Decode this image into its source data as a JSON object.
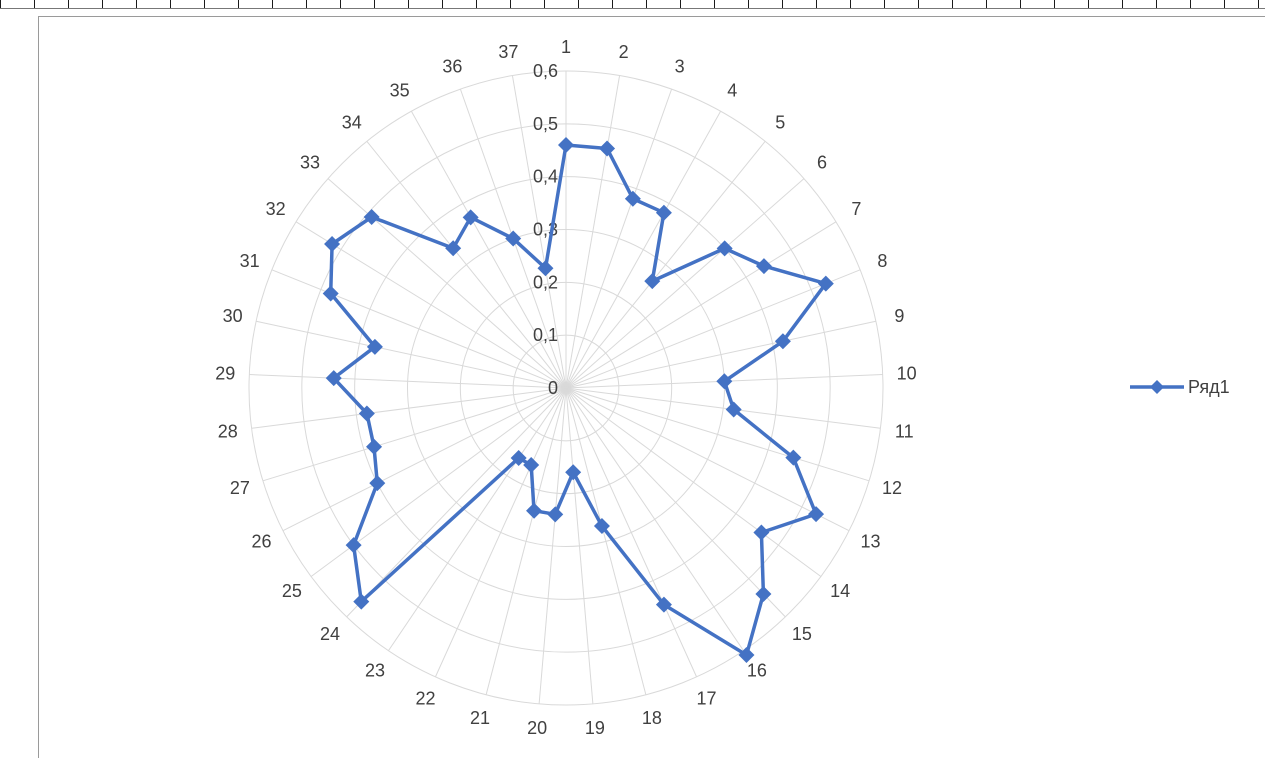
{
  "chart_data": {
    "type": "radar",
    "categories": [
      "1",
      "2",
      "3",
      "4",
      "5",
      "6",
      "7",
      "8",
      "9",
      "10",
      "11",
      "12",
      "13",
      "14",
      "15",
      "16",
      "17",
      "18",
      "19",
      "20",
      "21",
      "22",
      "23",
      "24",
      "25",
      "26",
      "27",
      "28",
      "29",
      "30",
      "31",
      "32",
      "33",
      "34",
      "35",
      "36",
      "37"
    ],
    "series": [
      {
        "name": "Ряд1",
        "color": "#4472C4",
        "marker": "diamond",
        "values": [
          0.46,
          0.46,
          0.38,
          0.38,
          0.26,
          0.4,
          0.44,
          0.53,
          0.42,
          0.3,
          0.32,
          0.45,
          0.53,
          0.46,
          0.54,
          0.61,
          0.45,
          0.27,
          0.16,
          0.24,
          0.24,
          0.16,
          0.16,
          0.56,
          0.5,
          0.4,
          0.38,
          0.38,
          0.44,
          0.37,
          0.48,
          0.52,
          0.49,
          0.34,
          0.37,
          0.3,
          0.23
        ]
      }
    ],
    "rlim": [
      0,
      0.6
    ],
    "tick_labels": [
      "0",
      "0,1",
      "0,2",
      "0,3",
      "0,4",
      "0,5",
      "0,6"
    ],
    "grid": true,
    "legend_position": "right",
    "title": ""
  }
}
